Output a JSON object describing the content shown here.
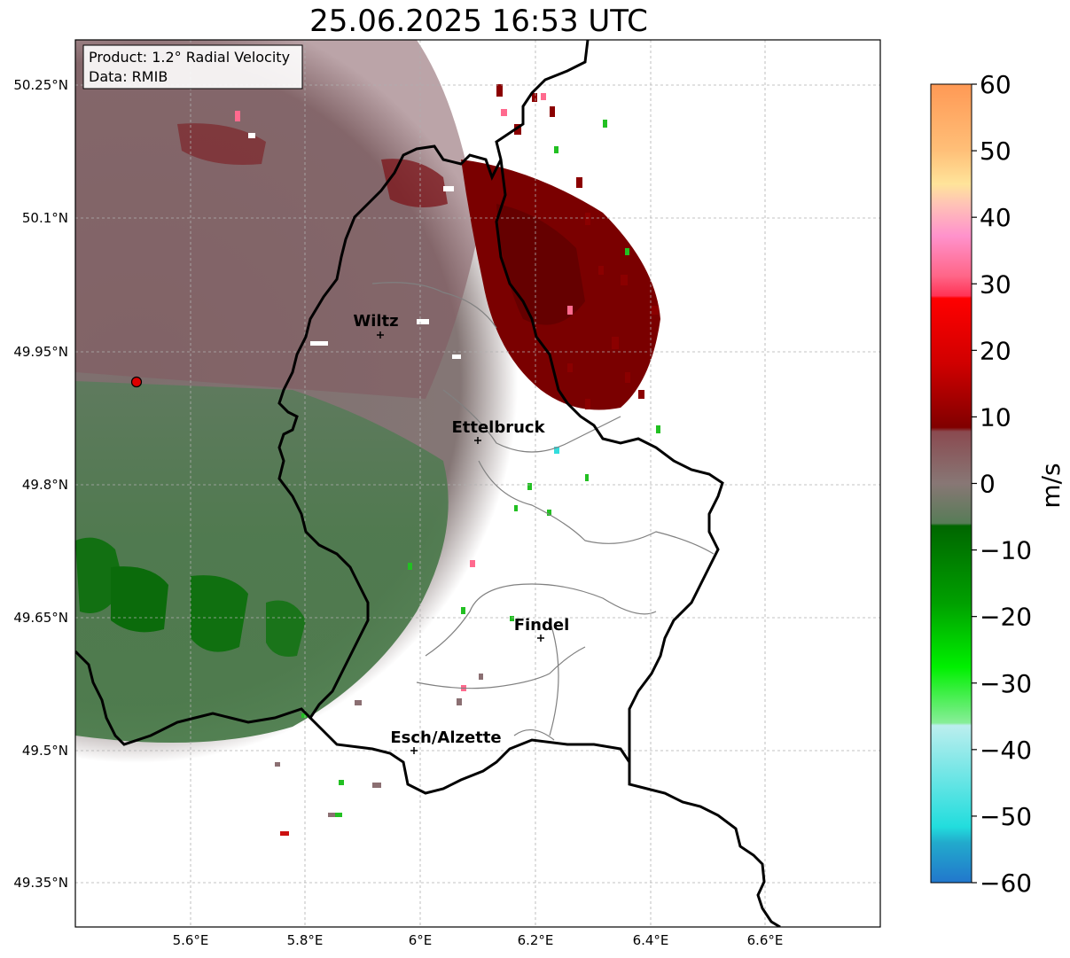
{
  "title": "25.06.2025 16:53 UTC",
  "info": {
    "product": "Product: 1.2° Radial Velocity",
    "source": "Data: RMIB"
  },
  "axes": {
    "lat_ticks": [
      "50.25°N",
      "50.1°N",
      "49.95°N",
      "49.8°N",
      "49.65°N",
      "49.5°N",
      "49.35°N"
    ],
    "lon_ticks": [
      "5.6°E",
      "5.8°E",
      "6°E",
      "6.2°E",
      "6.4°E",
      "6.6°E"
    ],
    "grid": true
  },
  "cities": [
    {
      "name": "Wiltz"
    },
    {
      "name": "Ettelbruck"
    },
    {
      "name": "Findel"
    },
    {
      "name": "Esch/Alzette"
    }
  ],
  "colorbar": {
    "unit": "m/s",
    "ticks": [
      "60",
      "50",
      "40",
      "30",
      "20",
      "10",
      "0",
      "−10",
      "−20",
      "−30",
      "−40",
      "−50",
      "−60"
    ],
    "range": [
      -60,
      60
    ]
  },
  "colors": {
    "approaching_green": "#2f6b2f",
    "receding_maroon": "#7a0000",
    "zero_gray": "#8a7a78"
  }
}
